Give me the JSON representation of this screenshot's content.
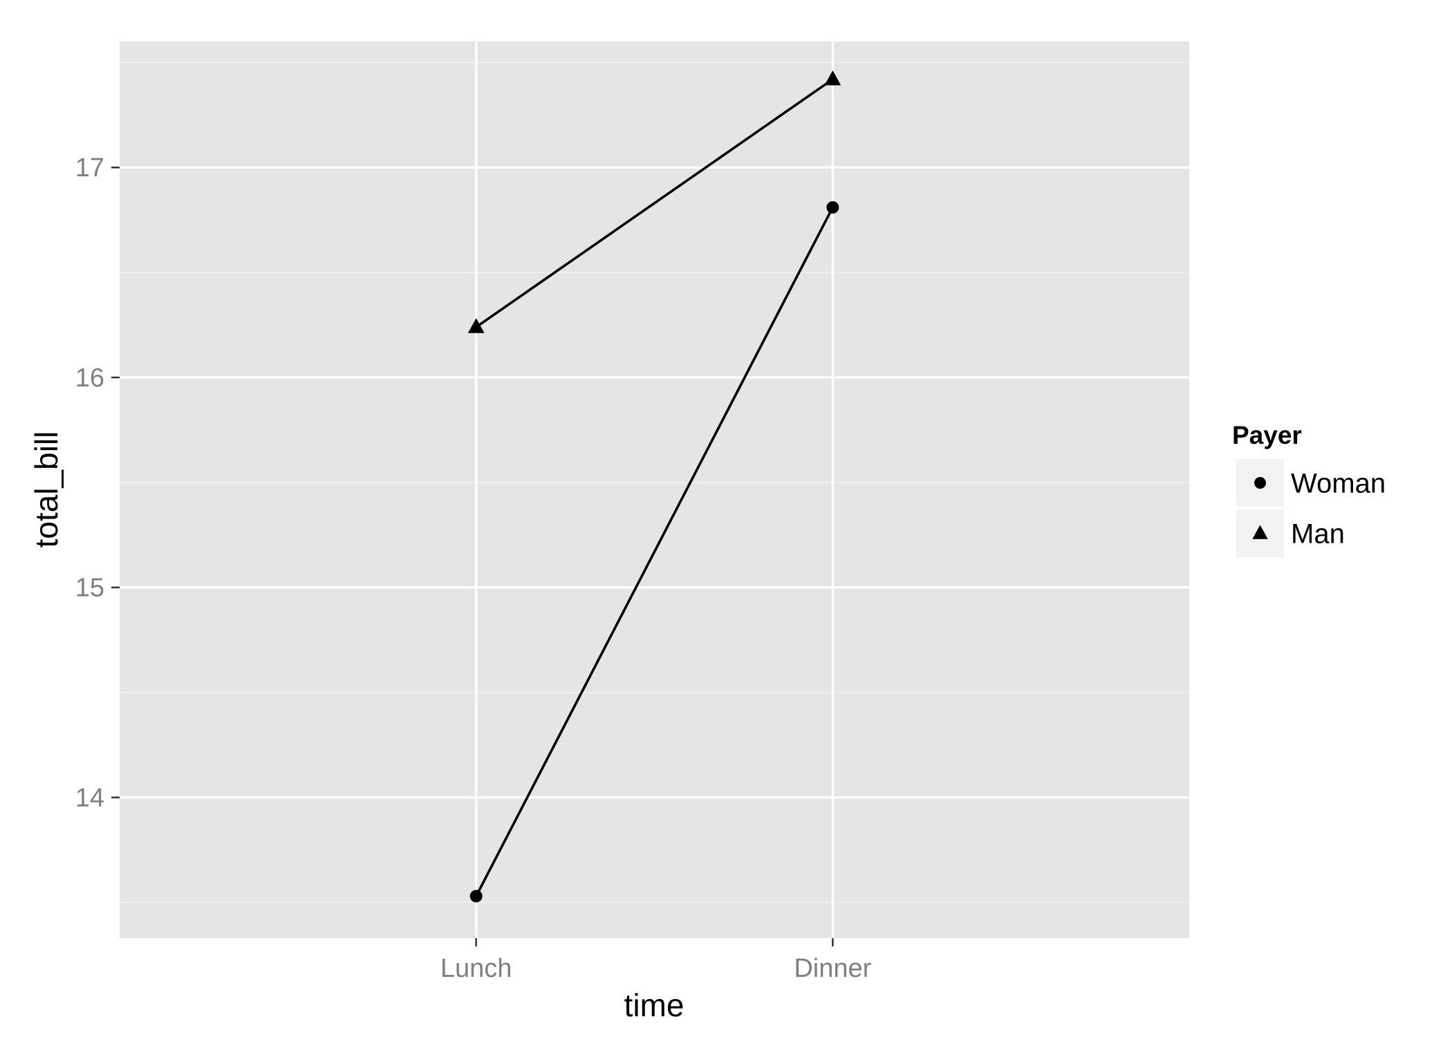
{
  "chart_data": {
    "type": "line",
    "xlabel": "time",
    "ylabel": "total_bill",
    "categories": [
      "Lunch",
      "Dinner"
    ],
    "ylim": [
      13.33,
      17.6
    ],
    "yticks": [
      14,
      15,
      16,
      17
    ],
    "grid": true,
    "legend": {
      "title": "Payer",
      "position": "right",
      "entries": [
        {
          "label": "Woman",
          "marker": "circle"
        },
        {
          "label": "Man",
          "marker": "triangle"
        }
      ]
    },
    "series": [
      {
        "name": "Woman",
        "marker": "circle",
        "values": [
          13.53,
          16.81
        ]
      },
      {
        "name": "Man",
        "marker": "triangle",
        "values": [
          16.24,
          17.42
        ]
      }
    ],
    "colors": {
      "panel": "#e5e5e5",
      "grid_major": "#ffffff",
      "grid_minor": "#f2f2f2",
      "line": "#000000",
      "tick_text": "#7f7f7f",
      "legend_key_bg": "#f2f2f2"
    }
  }
}
